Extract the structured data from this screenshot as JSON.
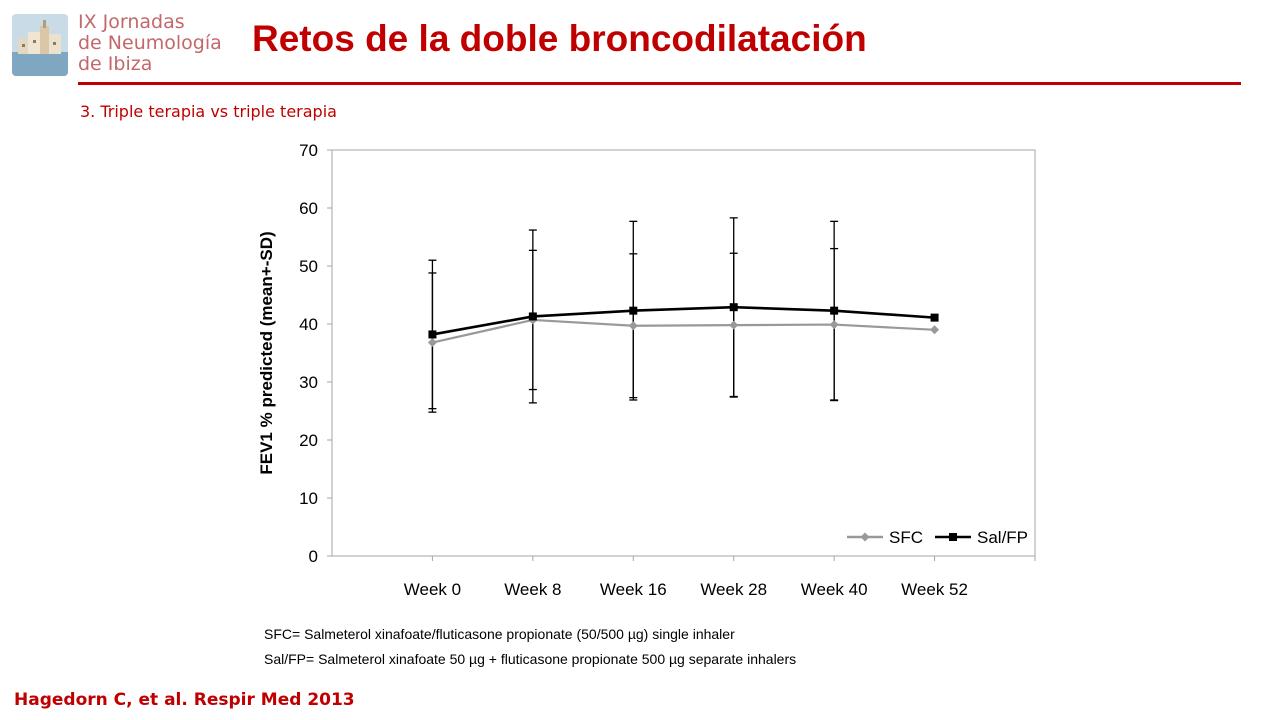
{
  "logo": {
    "lines": [
      "IX Jornadas",
      "de Neumología",
      "de Ibiza"
    ]
  },
  "slide": {
    "title": "Retos de la doble broncodilatación",
    "subtitle": "3. Triple terapia vs triple terapia",
    "citation": "Hagedorn C, et al. Respir Med 2013"
  },
  "colors": {
    "accent": "#c00000",
    "logo_text": "#c2686a",
    "sfc": "#999999",
    "salfp": "#000000"
  },
  "footnotes": [
    "SFC= Salmeterol xinafoate/fluticasone propionate (50/500 µg) single inhaler",
    "Sal/FP= Salmeterol xinafoate 50 µg + fluticasone propionate 500 µg separate inhalers"
  ],
  "chart_data": {
    "type": "line",
    "title": "",
    "xlabel": "",
    "ylabel": "FEV1 % predicted (mean+-SD)",
    "categories": [
      "Week 0",
      "Week 8",
      "Week 16",
      "Week 28",
      "Week 40",
      "Week 52"
    ],
    "ylim": [
      0,
      70
    ],
    "yticks": [
      0,
      10,
      20,
      30,
      40,
      50,
      60,
      70
    ],
    "grid": false,
    "legend_position": "bottom-right",
    "series": [
      {
        "name": "SFC",
        "color": "#999999",
        "marker": "diamond",
        "values": [
          36.8,
          40.7,
          39.7,
          39.8,
          39.9,
          39.0
        ],
        "sd": [
          12.0,
          12.0,
          12.4,
          12.4,
          13.1,
          null
        ]
      },
      {
        "name": "Sal/FP",
        "color": "#000000",
        "marker": "square",
        "values": [
          38.2,
          41.3,
          42.3,
          42.9,
          42.3,
          41.1
        ],
        "sd": [
          12.8,
          14.9,
          15.4,
          15.4,
          15.4,
          null
        ]
      }
    ]
  }
}
